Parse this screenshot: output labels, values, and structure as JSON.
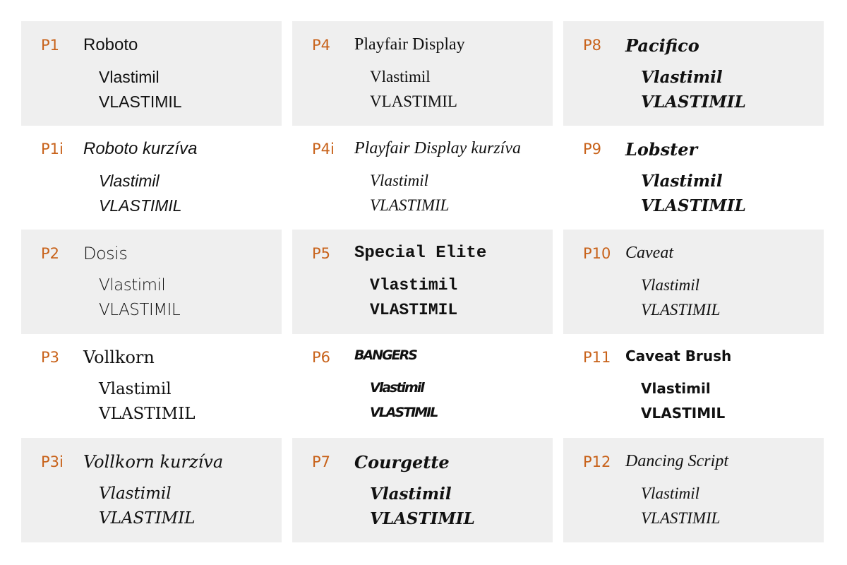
{
  "accent_color": "#c8621a",
  "cell_background": "#efefef",
  "sample_lower": "Vlastimil",
  "sample_upper": "VLASTIMIL",
  "cells": [
    {
      "code": "P1",
      "font": "Roboto"
    },
    {
      "code": "P1i",
      "font": "Roboto kurzíva"
    },
    {
      "code": "P2",
      "font": "Dosis"
    },
    {
      "code": "P3",
      "font": "Vollkorn"
    },
    {
      "code": "P3i",
      "font": "Vollkorn kurzíva"
    },
    {
      "code": "P4",
      "font": "Playfair Display"
    },
    {
      "code": "P4i",
      "font": "Playfair Display kurzíva"
    },
    {
      "code": "P5",
      "font": "Special Elite"
    },
    {
      "code": "P6",
      "font": "BANGERS"
    },
    {
      "code": "P7",
      "font": "Courgette"
    },
    {
      "code": "P8",
      "font": "Pacifico"
    },
    {
      "code": "P9",
      "font": "Lobster"
    },
    {
      "code": "P10",
      "font": "Caveat"
    },
    {
      "code": "P11",
      "font": "Caveat Brush"
    },
    {
      "code": "P12",
      "font": "Dancing Script"
    }
  ]
}
